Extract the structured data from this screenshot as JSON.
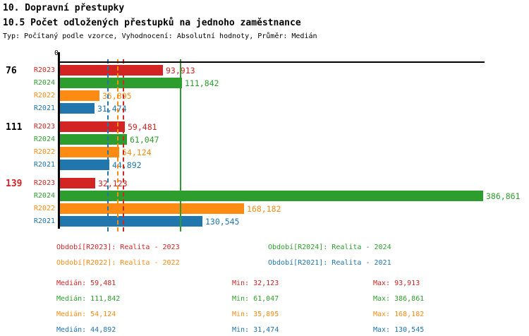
{
  "header": {
    "title": "10. Dopravní přestupky",
    "subtitle": "10.5 Počet odložených přestupků na jednoho zaměstnance",
    "meta": "Typ: Počítaný podle vzorce, Vyhodnocení: Absolutní hodnoty, Průměr: Medián"
  },
  "colors": {
    "R2023": "#d32424",
    "R2024": "#2d9e2d",
    "R2022": "#fb8b13",
    "R2021": "#2176ae",
    "axis": "#000000",
    "group_label_default": "#000000",
    "group_label_highlight": "#d32424"
  },
  "chart_data": {
    "type": "bar",
    "orientation": "horizontal",
    "title": "10.5 Počet odložených přestupků na jednoho zaměstnance",
    "axis_zero_label": "0",
    "xlim": [
      0,
      386861
    ],
    "grid": false,
    "legend_position": "bottom",
    "series_order": [
      "R2023",
      "R2024",
      "R2022",
      "R2021"
    ],
    "groups": [
      {
        "label": "76",
        "label_color": "#000000",
        "bars": [
          {
            "series": "R2023",
            "value": 93913,
            "display": "93,913"
          },
          {
            "series": "R2024",
            "value": 111842,
            "display": "111,842"
          },
          {
            "series": "R2022",
            "value": 35895,
            "display": "35,895"
          },
          {
            "series": "R2021",
            "value": 31474,
            "display": "31,474"
          }
        ]
      },
      {
        "label": "111",
        "label_color": "#000000",
        "bars": [
          {
            "series": "R2023",
            "value": 59481,
            "display": "59,481"
          },
          {
            "series": "R2024",
            "value": 61047,
            "display": "61,047"
          },
          {
            "series": "R2022",
            "value": 54124,
            "display": "54,124"
          },
          {
            "series": "R2021",
            "value": 44892,
            "display": "44,892"
          }
        ]
      },
      {
        "label": "139",
        "label_color": "#d32424",
        "bars": [
          {
            "series": "R2023",
            "value": 32123,
            "display": "32,123"
          },
          {
            "series": "R2024",
            "value": 386861,
            "display": "386,861"
          },
          {
            "series": "R2022",
            "value": 168182,
            "display": "168,182"
          },
          {
            "series": "R2021",
            "value": 130545,
            "display": "130,545"
          }
        ]
      }
    ],
    "median_lines": [
      {
        "series": "R2021",
        "value": 44892,
        "style": "dashed"
      },
      {
        "series": "R2022",
        "value": 54124,
        "style": "dashed"
      },
      {
        "series": "R2023",
        "value": 59481,
        "style": "dashed"
      },
      {
        "series": "R2024",
        "value": 111842,
        "style": "solid"
      }
    ]
  },
  "legend": {
    "items": [
      {
        "series": "R2023",
        "label": "Období[R2023]: Realita - 2023"
      },
      {
        "series": "R2024",
        "label": "Období[R2024]: Realita - 2024"
      },
      {
        "series": "R2022",
        "label": "Období[R2022]: Realita - 2022"
      },
      {
        "series": "R2021",
        "label": "Období[R2021]: Realita - 2021"
      }
    ]
  },
  "stats": {
    "median_label": "Medián",
    "min_label": "Min",
    "max_label": "Max",
    "rows": [
      {
        "series": "R2023",
        "median": "59,481",
        "min": "32,123",
        "max": "93,913"
      },
      {
        "series": "R2024",
        "median": "111,842",
        "min": "61,047",
        "max": "386,861"
      },
      {
        "series": "R2022",
        "median": "54,124",
        "min": "35,895",
        "max": "168,182"
      },
      {
        "series": "R2021",
        "median": "44,892",
        "min": "31,474",
        "max": "130,545"
      }
    ]
  }
}
